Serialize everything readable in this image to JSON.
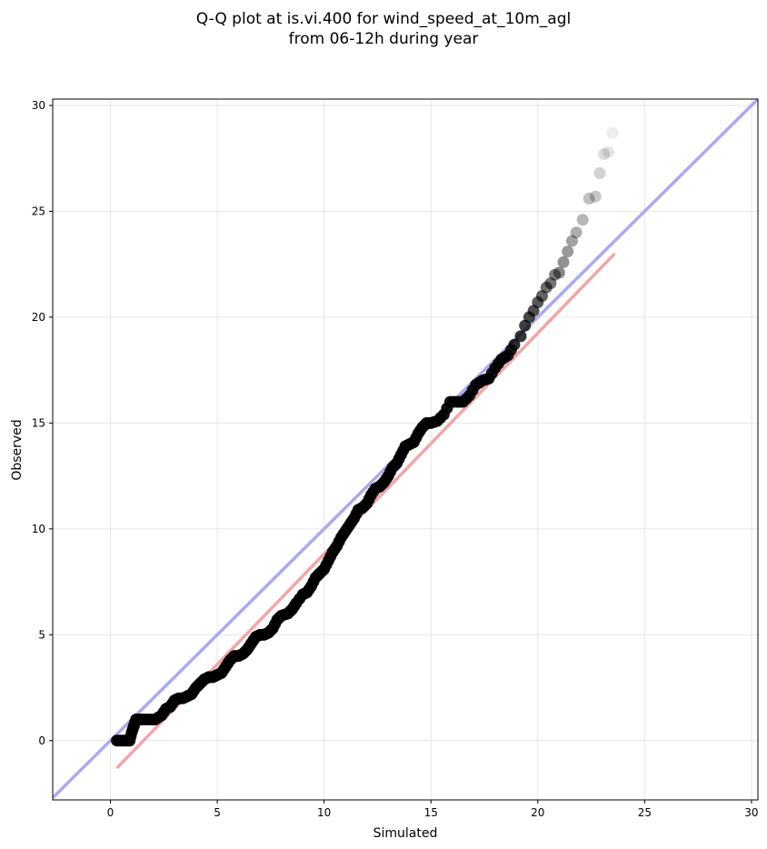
{
  "chart_data": {
    "type": "scatter",
    "title": [
      "Q-Q plot at is.vi.400 for wind_speed_at_10m_agl",
      "from 06-12h during year"
    ],
    "xlabel": "Simulated",
    "ylabel": "Observed",
    "xlim": [
      -2.7,
      30.3
    ],
    "ylim": [
      -2.8,
      30.3
    ],
    "x_ticks": [
      0,
      5,
      10,
      15,
      20,
      25,
      30
    ],
    "y_ticks": [
      0,
      5,
      10,
      15,
      20,
      25,
      30
    ],
    "grid": true,
    "colors": {
      "points": "#000000",
      "identity_line": "#aaaaee",
      "fit_line": "#f2a6a6",
      "grid": "#e6e6e6"
    },
    "identity_line": {
      "x": [
        -2.7,
        30.3
      ],
      "y": [
        -2.7,
        30.3
      ]
    },
    "fit_line": {
      "x": [
        0.3,
        23.6
      ],
      "y": [
        -1.3,
        23.0
      ]
    },
    "quantile_points": {
      "x": [
        0.3,
        0.5,
        0.7,
        0.9,
        1.0,
        1.1,
        1.2,
        1.3,
        1.5,
        1.8,
        2.1,
        2.4,
        2.6,
        2.8,
        3.0,
        3.2,
        3.4,
        3.6,
        3.8,
        4.0,
        4.2,
        4.4,
        4.6,
        4.8,
        5.0,
        5.2,
        5.4,
        5.6,
        5.8,
        6.0,
        6.2,
        6.4,
        6.6,
        6.8,
        7.0,
        7.2,
        7.4,
        7.6,
        7.8,
        8.0,
        8.3,
        8.5,
        8.7,
        9.0,
        9.2,
        9.4,
        9.6,
        9.8,
        10.0,
        10.2,
        10.4,
        10.6,
        10.8,
        11.0,
        11.2,
        11.4,
        11.6,
        11.8,
        12.0,
        12.2,
        12.4,
        12.6,
        12.8,
        13.0,
        13.2,
        13.4,
        13.6,
        13.8,
        14.0,
        14.2,
        14.4,
        14.6,
        14.8,
        15.0,
        15.3,
        15.6,
        15.9,
        16.2,
        16.5,
        16.8,
        17.1,
        17.4,
        17.7,
        18.0,
        18.3,
        18.6,
        18.9,
        19.2,
        19.4,
        19.6,
        19.8,
        20.0,
        20.2,
        20.4,
        20.6,
        20.8,
        21.0,
        21.2,
        21.4,
        21.6,
        21.8,
        22.1,
        22.4,
        22.7,
        22.9,
        23.1,
        23.3,
        23.5
      ],
      "y": [
        0.0,
        0.0,
        0.0,
        0.0,
        0.4,
        0.7,
        1.0,
        1.0,
        1.0,
        1.0,
        1.0,
        1.2,
        1.5,
        1.6,
        1.9,
        2.0,
        2.0,
        2.1,
        2.2,
        2.5,
        2.7,
        2.9,
        3.0,
        3.0,
        3.1,
        3.2,
        3.5,
        3.8,
        4.0,
        4.0,
        4.1,
        4.3,
        4.6,
        4.9,
        5.0,
        5.0,
        5.1,
        5.3,
        5.7,
        5.9,
        6.0,
        6.2,
        6.5,
        6.9,
        7.0,
        7.3,
        7.7,
        7.9,
        8.1,
        8.5,
        8.9,
        9.2,
        9.6,
        9.9,
        10.2,
        10.5,
        10.9,
        11.0,
        11.2,
        11.6,
        11.9,
        12.0,
        12.2,
        12.5,
        12.9,
        13.1,
        13.5,
        13.9,
        14.0,
        14.1,
        14.5,
        14.8,
        15.0,
        15.0,
        15.1,
        15.4,
        16.0,
        16.0,
        16.0,
        16.3,
        16.8,
        17.0,
        17.1,
        17.6,
        18.0,
        18.2,
        18.7,
        19.1,
        19.6,
        20.0,
        20.3,
        20.7,
        21.0,
        21.4,
        21.6,
        22.0,
        22.1,
        22.6,
        23.1,
        23.6,
        24.0,
        24.6,
        25.6,
        25.7,
        26.8,
        27.7,
        27.8,
        28.7
      ]
    }
  }
}
